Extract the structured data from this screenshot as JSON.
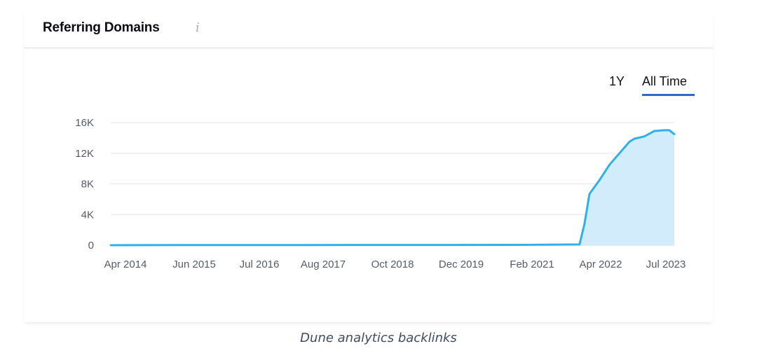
{
  "card": {
    "title": "Referring Domains",
    "info_icon": "info-icon",
    "info_glyph": "i",
    "tabs": [
      {
        "label": "1Y",
        "active": false
      },
      {
        "label": "All Time",
        "active": true
      }
    ]
  },
  "caption": "Dune analytics backlinks",
  "colors": {
    "line": "#2fb0ee",
    "area": "#d3ecfb",
    "tab_underline": "#2f68c8",
    "grid": "#e3e6eb"
  },
  "chart_data": {
    "type": "area",
    "title": "Referring Domains",
    "xlabel": "",
    "ylabel": "",
    "x_ticks": [
      "Apr 2014",
      "Jun 2015",
      "Jul 2016",
      "Aug 2017",
      "Oct 2018",
      "Dec 2019",
      "Feb 2021",
      "Apr 2022",
      "Jul 2023"
    ],
    "y_ticks": [
      "0",
      "4K",
      "8K",
      "12K",
      "16K"
    ],
    "ylim": [
      0,
      16000
    ],
    "xlim": [
      "2014-04",
      "2023-09"
    ],
    "grid": true,
    "legend": "none",
    "series": [
      {
        "x": [
          "2014-04",
          "2015-06",
          "2016-07",
          "2017-08",
          "2018-10",
          "2019-12",
          "2021-02",
          "2021-10",
          "2022-02",
          "2022-03",
          "2022-04",
          "2022-06",
          "2022-08",
          "2022-10",
          "2022-12",
          "2023-01",
          "2023-03",
          "2023-05",
          "2023-07",
          "2023-08",
          "2023-09"
        ],
        "values": [
          0,
          20,
          20,
          30,
          40,
          40,
          50,
          80,
          100,
          2800,
          6700,
          8500,
          10500,
          12000,
          13500,
          13900,
          14200,
          14900,
          15000,
          15000,
          14500
        ]
      }
    ]
  }
}
